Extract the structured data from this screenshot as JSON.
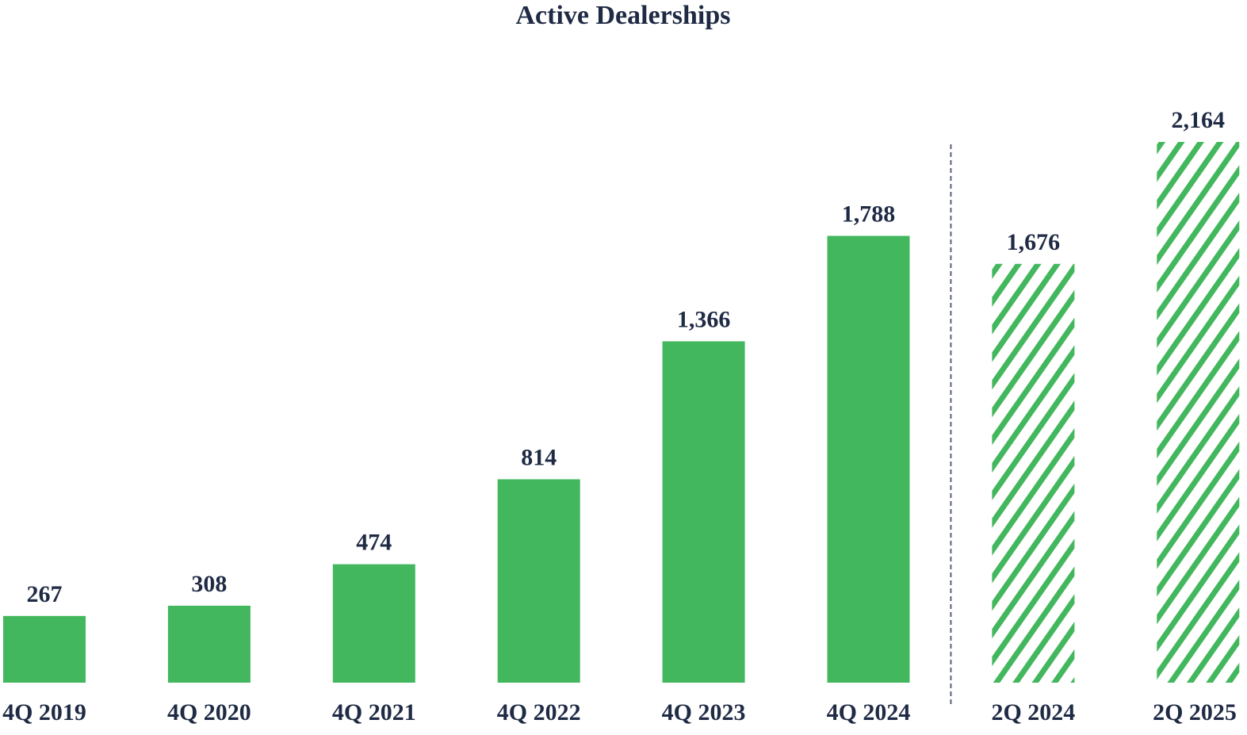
{
  "chart_data": {
    "type": "bar",
    "title": "Active Dealerships",
    "xlabel": "",
    "ylabel": "",
    "categories": [
      "4Q 2019",
      "4Q 2020",
      "4Q 2021",
      "4Q 2022",
      "4Q 2023",
      "4Q 2024",
      "2Q 2024",
      "2Q 2025"
    ],
    "values": [
      267,
      308,
      474,
      814,
      1366,
      1788,
      1676,
      2164
    ],
    "value_labels": [
      "267",
      "308",
      "474",
      "814",
      "1,366",
      "1,788",
      "1,676",
      "2,164"
    ],
    "bar_styles": [
      "solid",
      "solid",
      "solid",
      "solid",
      "solid",
      "solid",
      "hatched",
      "hatched"
    ],
    "ylim": [
      0,
      2164
    ],
    "grid": false,
    "legend": "none",
    "separator_after_category_index": 5,
    "colors": {
      "bar": "#43b75d",
      "text": "#1f2a44",
      "separator": "#5a6478"
    }
  }
}
